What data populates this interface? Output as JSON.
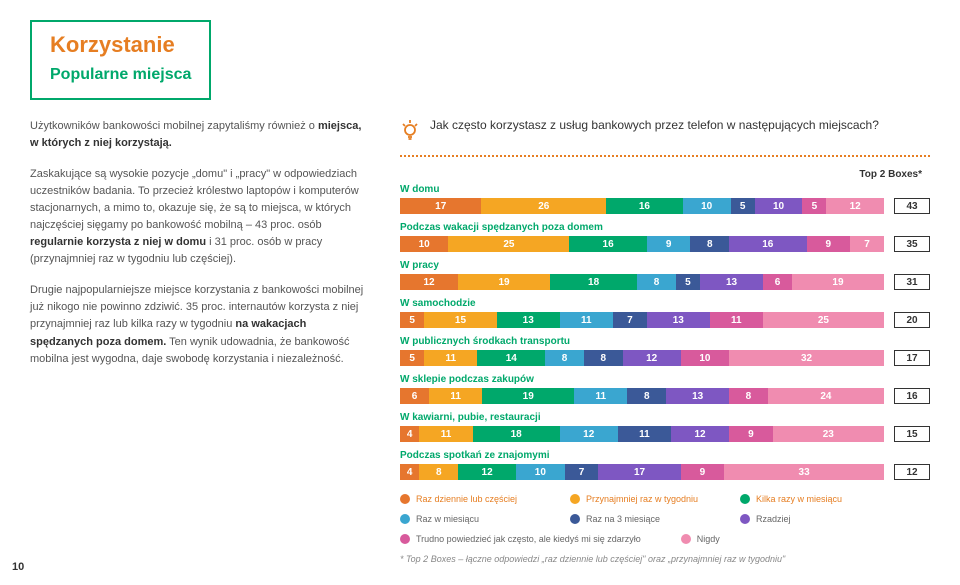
{
  "header": {
    "title": "Korzystanie",
    "subtitle": "Popularne miejsca"
  },
  "leftText": {
    "p1a": "Użytkowników bankowości mobilnej zapytaliśmy również o ",
    "p1b": "miejsca, w których z niej korzystają.",
    "p2a": "Zaskakujące są wysokie pozycje „domu\" i „pracy\" w odpowiedziach uczestników badania. To przecież królestwo laptopów i komputerów stacjonarnych, a mimo to, okazuje się, że są to miejsca, w których najczęściej sięgamy po bankowość mobilną – 43 proc. osób ",
    "p2b": "regularnie korzysta z niej w domu",
    "p2c": " i 31 proc. osób w pracy (przynajmniej raz w tygodniu lub częściej).",
    "p3a": "Drugie najpopularniejsze miejsce korzystania z bankowości mobilnej już nikogo nie powinno zdziwić. 35 proc. internautów korzysta z niej przynajmniej raz lub kilka razy w tygodniu ",
    "p3b": "na wakacjach spędzanych poza domem.",
    "p3c": " Ten wynik udowadnia, że bankowość mobilna jest wygodna, daje swobodę korzystania i niezależność."
  },
  "question": "Jak często korzystasz z usług bankowych przez telefon w następujących miejscach?",
  "top2Header": "Top 2 Boxes*",
  "colors": [
    "#e6762e",
    "#f5a623",
    "#00a86b",
    "#3aa6d0",
    "#3b5998",
    "#7e57c2",
    "#d85a9c",
    "#f08cb0"
  ],
  "charts": [
    {
      "label": "W domu",
      "values": [
        17,
        26,
        16,
        10,
        5,
        10,
        5,
        12
      ],
      "top2": 43
    },
    {
      "label": "Podczas wakacji spędzanych poza domem",
      "values": [
        10,
        25,
        16,
        9,
        8,
        16,
        9,
        7
      ],
      "top2": 35
    },
    {
      "label": "W pracy",
      "values": [
        12,
        19,
        18,
        8,
        5,
        13,
        6,
        19
      ],
      "top2": 31
    },
    {
      "label": "W samochodzie",
      "values": [
        5,
        15,
        13,
        11,
        7,
        13,
        11,
        25
      ],
      "top2": 20
    },
    {
      "label": "W publicznych środkach transportu",
      "values": [
        5,
        11,
        14,
        8,
        8,
        12,
        10,
        32
      ],
      "top2": 17
    },
    {
      "label": "W sklepie podczas zakupów",
      "values": [
        6,
        11,
        19,
        11,
        8,
        13,
        8,
        24
      ],
      "top2": 16
    },
    {
      "label": "W kawiarni, pubie, restauracji",
      "values": [
        4,
        11,
        18,
        12,
        11,
        12,
        9,
        23
      ],
      "top2": 15
    },
    {
      "label": "Podczas spotkań ze znajomymi",
      "values": [
        4,
        8,
        12,
        10,
        7,
        17,
        9,
        33
      ],
      "top2": 12
    }
  ],
  "legend": [
    {
      "color": "#e6762e",
      "label": "Raz dziennie lub częściej",
      "accent": true
    },
    {
      "color": "#f5a623",
      "label": "Przynajmniej raz w tygodniu",
      "accent": true
    },
    {
      "color": "#00a86b",
      "label": "Kilka razy w miesiącu",
      "accent": true
    },
    {
      "color": "#3aa6d0",
      "label": "Raz w miesiącu"
    },
    {
      "color": "#3b5998",
      "label": "Raz na 3 miesiące"
    },
    {
      "color": "#7e57c2",
      "label": "Rzadziej"
    },
    {
      "color": "#d85a9c",
      "label": "Trudno powiedzieć jak często, ale kiedyś mi się zdarzyło"
    },
    {
      "color": "#f08cb0",
      "label": "Nigdy"
    }
  ],
  "footnote": "* Top 2 Boxes – łączne odpowiedzi „raz dziennie lub częściej\" oraz „przynajmniej raz w tygodniu\"",
  "pageNum": "10"
}
